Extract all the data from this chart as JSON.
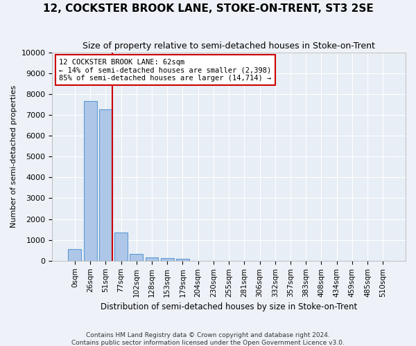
{
  "title": "12, COCKSTER BROOK LANE, STOKE-ON-TRENT, ST3 2SE",
  "subtitle": "Size of property relative to semi-detached houses in Stoke-on-Trent",
  "xlabel": "Distribution of semi-detached houses by size in Stoke-on-Trent",
  "ylabel": "Number of semi-detached properties",
  "footer_line1": "Contains HM Land Registry data © Crown copyright and database right 2024.",
  "footer_line2": "Contains public sector information licensed under the Open Government Licence v3.0.",
  "bar_labels": [
    "0sqm",
    "26sqm",
    "51sqm",
    "77sqm",
    "102sqm",
    "128sqm",
    "153sqm",
    "179sqm",
    "204sqm",
    "230sqm",
    "255sqm",
    "281sqm",
    "306sqm",
    "332sqm",
    "357sqm",
    "383sqm",
    "408sqm",
    "434sqm",
    "459sqm",
    "485sqm",
    "510sqm"
  ],
  "bar_values": [
    560,
    7650,
    7250,
    1350,
    310,
    160,
    120,
    90,
    0,
    0,
    0,
    0,
    0,
    0,
    0,
    0,
    0,
    0,
    0,
    0,
    0
  ],
  "bar_color": "#aec6e8",
  "bar_edge_color": "#5b9bd5",
  "annotation_line1": "12 COCKSTER BROOK LANE: 62sqm",
  "annotation_line2": "← 14% of semi-detached houses are smaller (2,398)",
  "annotation_line3": "85% of semi-detached houses are larger (14,714) →",
  "ylim": [
    0,
    10000
  ],
  "yticks": [
    0,
    1000,
    2000,
    3000,
    4000,
    5000,
    6000,
    7000,
    8000,
    9000,
    10000
  ],
  "plot_background": "#e8eef5",
  "grid_color": "#ffffff",
  "annotation_box_color": "#ffffff",
  "annotation_box_edge": "#cc0000",
  "vline_color": "#cc0000"
}
